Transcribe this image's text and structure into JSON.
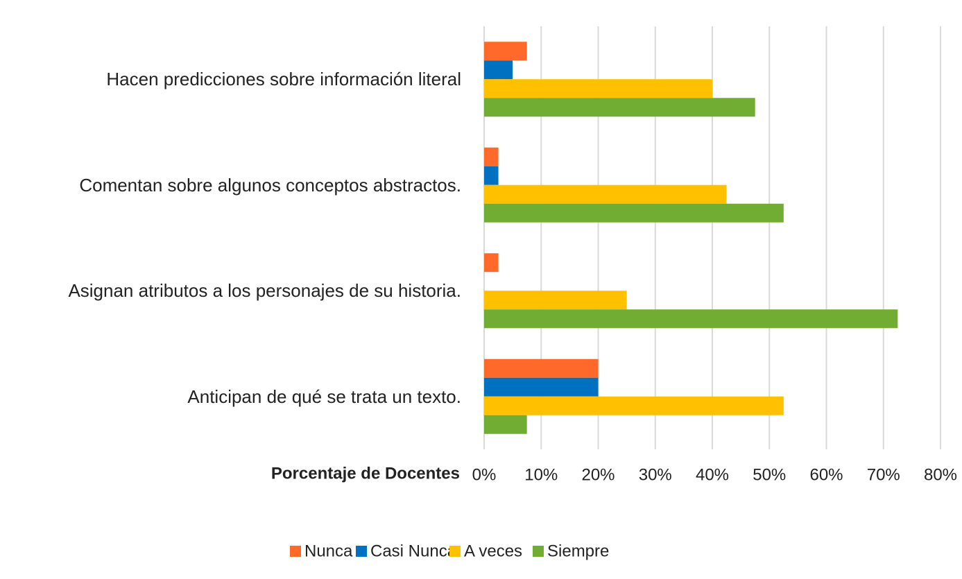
{
  "chart_data": {
    "type": "bar",
    "orientation": "horizontal",
    "x_label": "Porcentaje de Docentes",
    "categories": [
      "Hacen predicciones sobre información literal",
      "Comentan sobre algunos conceptos abstractos.",
      "Asignan atributos a los personajes de su historia.",
      "Anticipan de qué se trata un texto."
    ],
    "series": [
      {
        "name": "Nunca",
        "color": "#ff6a2b",
        "values": [
          7.5,
          2.5,
          2.5,
          20
        ]
      },
      {
        "name": "Casi Nunca",
        "color": "#0070c0",
        "values": [
          5,
          2.5,
          0,
          20
        ]
      },
      {
        "name": "A veces",
        "color": "#ffc000",
        "values": [
          40,
          42.5,
          25,
          52.5
        ]
      },
      {
        "name": "Siempre",
        "color": "#70ad32",
        "values": [
          47.5,
          52.5,
          72.5,
          7.5
        ]
      }
    ],
    "xlim": [
      0,
      80
    ],
    "xticks": [
      {
        "value": 0,
        "label": "0%"
      },
      {
        "value": 10,
        "label": "10%"
      },
      {
        "value": 20,
        "label": "20%"
      },
      {
        "value": 30,
        "label": "30%"
      },
      {
        "value": 40,
        "label": "40%"
      },
      {
        "value": 50,
        "label": "50%"
      },
      {
        "value": 60,
        "label": "60%"
      },
      {
        "value": 70,
        "label": "70%"
      },
      {
        "value": 80,
        "label": "80%"
      }
    ],
    "grid": true,
    "legend": "bottom"
  }
}
